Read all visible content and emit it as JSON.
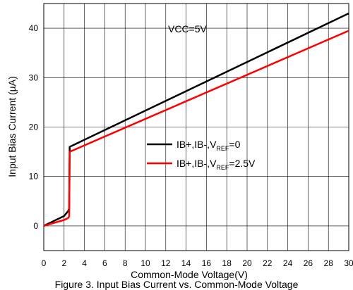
{
  "chart_data": {
    "type": "line",
    "xlabel": "Common-Mode Voltage(V)",
    "ylabel": "Input Bias Current (µA)",
    "xlim": [
      0,
      30
    ],
    "ylim": [
      -5,
      45
    ],
    "xticks": [
      0,
      2,
      4,
      6,
      8,
      10,
      12,
      14,
      16,
      18,
      20,
      22,
      24,
      26,
      28,
      30
    ],
    "yticks": [
      0,
      10,
      20,
      30,
      40
    ],
    "xtick_labels": [
      "0",
      "2",
      "4",
      "6",
      "8",
      "10",
      "12",
      "14",
      "16",
      "18",
      "20",
      "22",
      "24",
      "26",
      "28",
      "30"
    ],
    "ytick_labels": [
      "0",
      "10",
      "20",
      "30",
      "40"
    ],
    "grid": true,
    "legend_position": "center-right",
    "annotation": "VCC=5V",
    "series": [
      {
        "name": "IB+,IB-,V_REF=0",
        "legend_main": "IB+,IB-,V",
        "legend_sub": "REF",
        "legend_tail": "=0",
        "color": "#000000",
        "x": [
          0,
          1,
          2,
          2.4,
          2.5,
          2.55,
          30
        ],
        "y": [
          0,
          1,
          2,
          3,
          3.5,
          16,
          43
        ]
      },
      {
        "name": "IB+,IB-,V_REF=2.5V",
        "legend_main": "IB+,IB-,V",
        "legend_sub": "REF",
        "legend_tail": "=2.5V",
        "color": "#ff0000",
        "x": [
          0,
          1,
          2,
          2.4,
          2.5,
          2.55,
          30
        ],
        "y": [
          0,
          0.6,
          1.2,
          1.6,
          1.9,
          15,
          39.5
        ]
      }
    ]
  },
  "caption": "Figure 3. Input Bias Current vs. Common-Mode Voltage"
}
